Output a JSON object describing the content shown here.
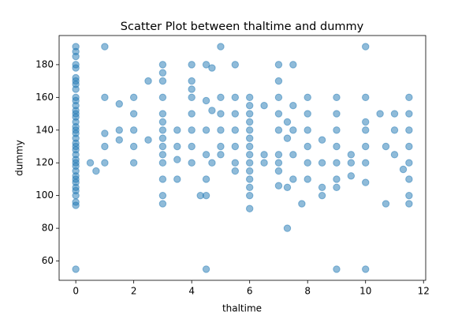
{
  "chart_data": {
    "type": "scatter",
    "title": "Scatter Plot between thaltime and dummy",
    "x_label": "thaltime",
    "y_label": "dummy",
    "color": "#1f77b4",
    "xlim": [
      -0.575,
      12.075
    ],
    "ylim": [
      48.2,
      197.8
    ],
    "xticks": [
      0,
      2,
      4,
      6,
      8,
      10,
      12
    ],
    "yticks": [
      60,
      80,
      100,
      120,
      140,
      160,
      180
    ],
    "x": [
      0,
      0,
      0,
      0,
      0,
      0,
      0,
      0,
      0,
      0,
      0,
      0,
      0,
      0,
      0,
      0,
      0,
      0,
      0,
      0,
      0,
      0,
      0,
      0,
      0,
      0,
      0,
      0,
      0,
      0,
      0,
      0,
      0,
      0,
      0,
      0,
      0,
      0.5,
      0.7,
      1,
      1,
      1,
      1,
      1,
      1.5,
      1.5,
      1.5,
      2,
      2,
      2,
      2,
      2,
      2.5,
      2.5,
      3,
      3,
      3,
      3,
      3,
      3,
      3,
      3,
      3,
      3,
      3,
      3,
      3,
      3,
      3.5,
      3.5,
      3.5,
      3.5,
      4,
      4,
      4,
      4,
      4,
      4,
      4,
      4,
      4.3,
      4.5,
      4.5,
      4.5,
      4.5,
      4.5,
      4.5,
      4.5,
      4.7,
      4.7,
      4.7,
      5,
      5,
      5,
      5,
      5,
      5,
      5.5,
      5.5,
      5.5,
      5.5,
      5.5,
      5.5,
      5.5,
      6,
      6,
      6,
      6,
      6,
      6,
      6,
      6,
      6,
      6,
      6,
      6,
      6,
      6,
      6.5,
      6.5,
      6.5,
      7,
      7,
      7,
      7,
      7,
      7,
      7,
      7,
      7,
      7.3,
      7.3,
      7.3,
      7.3,
      7.5,
      7.5,
      7.5,
      7.5,
      7.5,
      7.8,
      8,
      8,
      8,
      8,
      8,
      8,
      8.5,
      8.5,
      8.5,
      8.5,
      9,
      9,
      9,
      9,
      9,
      9,
      9,
      9,
      9.5,
      9.5,
      9.5,
      10,
      10,
      10,
      10,
      10,
      10,
      10,
      10,
      10.5,
      10.7,
      10.7,
      11,
      11,
      11,
      11.3,
      11.5,
      11.5,
      11.5,
      11.5,
      11.5,
      11.5,
      11.5,
      11.5
    ],
    "y": [
      55,
      94,
      96,
      100,
      103,
      105,
      108,
      110,
      112,
      115,
      118,
      120,
      122,
      125,
      128,
      130,
      132,
      135,
      138,
      140,
      142,
      145,
      148,
      150,
      152,
      155,
      158,
      160,
      165,
      168,
      170,
      172,
      178,
      180,
      185,
      188,
      191,
      120,
      115,
      120,
      130,
      138,
      160,
      191,
      134,
      140,
      156,
      120,
      130,
      140,
      150,
      160,
      134,
      170,
      95,
      100,
      110,
      120,
      125,
      130,
      135,
      140,
      145,
      150,
      160,
      170,
      175,
      180,
      110,
      122,
      130,
      140,
      120,
      130,
      140,
      150,
      160,
      165,
      170,
      180,
      100,
      55,
      100,
      110,
      125,
      140,
      158,
      180,
      120,
      152,
      178,
      125,
      130,
      140,
      150,
      160,
      191,
      115,
      120,
      130,
      140,
      150,
      160,
      180,
      92,
      100,
      105,
      110,
      115,
      120,
      125,
      130,
      135,
      140,
      145,
      150,
      155,
      160,
      120,
      125,
      155,
      106,
      115,
      120,
      125,
      140,
      150,
      160,
      170,
      180,
      80,
      105,
      135,
      145,
      110,
      125,
      140,
      155,
      180,
      95,
      110,
      120,
      130,
      140,
      150,
      160,
      100,
      105,
      120,
      134,
      55,
      105,
      110,
      120,
      130,
      140,
      150,
      160,
      112,
      120,
      125,
      55,
      108,
      120,
      130,
      140,
      145,
      160,
      191,
      150,
      95,
      130,
      125,
      140,
      150,
      116,
      95,
      100,
      110,
      120,
      130,
      140,
      150,
      160
    ]
  }
}
